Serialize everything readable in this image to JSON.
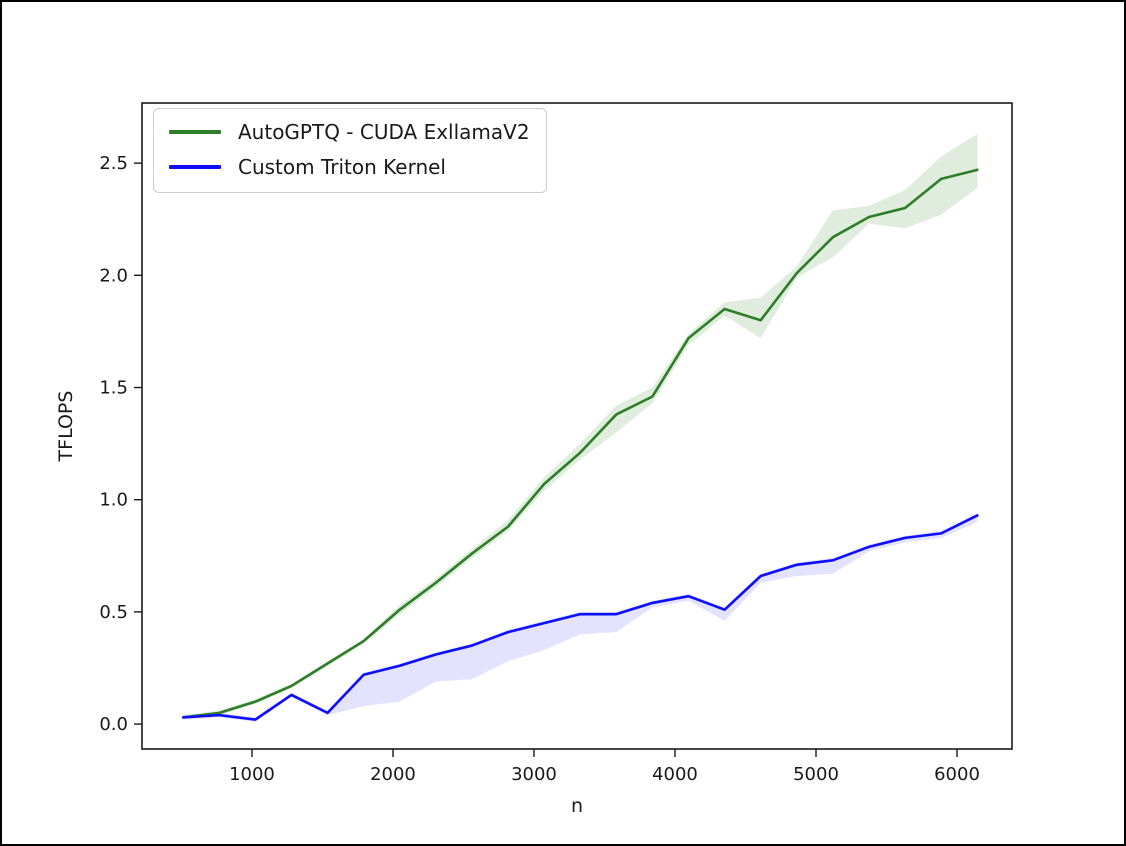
{
  "figure": {
    "background": "#ffffff",
    "frame_color": "#000000",
    "spine_color": "#1a1a1a",
    "tick_color": "#333333",
    "text_color": "#1a1a1a"
  },
  "chart_data": {
    "type": "line",
    "title": "",
    "xlabel": "n",
    "ylabel": "TFLOPS",
    "grid": false,
    "legend_position": "upper left",
    "xlim": [
      220,
      6390
    ],
    "ylim": [
      -0.111,
      2.768
    ],
    "xticks": [
      "1000",
      "2000",
      "3000",
      "4000",
      "5000",
      "6000"
    ],
    "yticks": [
      "0.0",
      "0.5",
      "1.0",
      "1.5",
      "2.0",
      "2.5"
    ],
    "x": [
      512,
      768,
      1024,
      1280,
      1536,
      1792,
      2048,
      2304,
      2560,
      2816,
      3072,
      3328,
      3584,
      3840,
      4096,
      4352,
      4608,
      4864,
      5120,
      5376,
      5632,
      5888,
      6144
    ],
    "series": [
      {
        "name": "AutoGPTQ - CUDA ExllamaV2",
        "color": "#2e7d28",
        "band_color": "#3f8f33",
        "band_opacity": 0.16,
        "values": [
          0.03,
          0.05,
          0.1,
          0.17,
          0.27,
          0.37,
          0.51,
          0.63,
          0.76,
          0.88,
          1.07,
          1.21,
          1.38,
          1.46,
          1.72,
          1.85,
          1.8,
          2.01,
          2.17,
          2.26,
          2.3,
          2.43,
          2.47
        ],
        "band_lower": [
          0.02,
          0.04,
          0.09,
          0.16,
          0.26,
          0.36,
          0.49,
          0.61,
          0.74,
          0.86,
          1.04,
          1.18,
          1.3,
          1.43,
          1.69,
          1.82,
          1.72,
          1.99,
          2.08,
          2.23,
          2.21,
          2.27,
          2.39
        ],
        "band_upper": [
          0.04,
          0.06,
          0.11,
          0.18,
          0.28,
          0.38,
          0.53,
          0.65,
          0.78,
          0.91,
          1.1,
          1.25,
          1.42,
          1.5,
          1.74,
          1.88,
          1.9,
          2.04,
          2.29,
          2.31,
          2.38,
          2.53,
          2.63
        ]
      },
      {
        "name": "Custom Triton Kernel",
        "color": "#0d0dff",
        "band_color": "#4444ff",
        "band_opacity": 0.15,
        "values": [
          0.03,
          0.04,
          0.02,
          0.13,
          0.05,
          0.22,
          0.26,
          0.31,
          0.35,
          0.41,
          0.45,
          0.49,
          0.49,
          0.54,
          0.57,
          0.51,
          0.66,
          0.71,
          0.73,
          0.79,
          0.83,
          0.85,
          0.93
        ],
        "band_lower": [
          0.02,
          0.03,
          0.01,
          0.12,
          0.04,
          0.08,
          0.1,
          0.19,
          0.2,
          0.28,
          0.33,
          0.4,
          0.41,
          0.52,
          0.55,
          0.46,
          0.63,
          0.66,
          0.67,
          0.77,
          0.81,
          0.83,
          0.9
        ],
        "band_upper": [
          0.04,
          0.05,
          0.03,
          0.14,
          0.06,
          0.23,
          0.27,
          0.32,
          0.36,
          0.42,
          0.46,
          0.5,
          0.5,
          0.55,
          0.58,
          0.52,
          0.67,
          0.72,
          0.74,
          0.8,
          0.84,
          0.86,
          0.94
        ]
      }
    ]
  }
}
